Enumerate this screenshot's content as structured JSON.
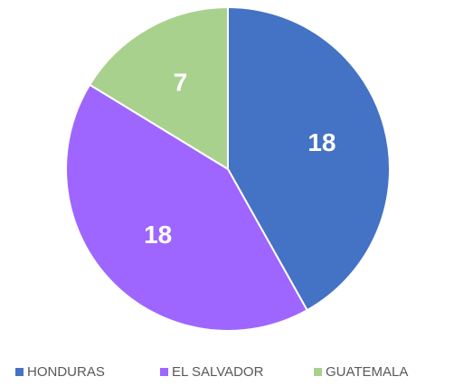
{
  "chart_data": {
    "type": "pie",
    "categories": [
      "HONDURAS",
      "EL SALVADOR",
      "GUATEMALA"
    ],
    "values": [
      18,
      18,
      7
    ],
    "colors": [
      "#4472c4",
      "#9e66ff",
      "#a9d18e"
    ],
    "legend": "bottom"
  }
}
